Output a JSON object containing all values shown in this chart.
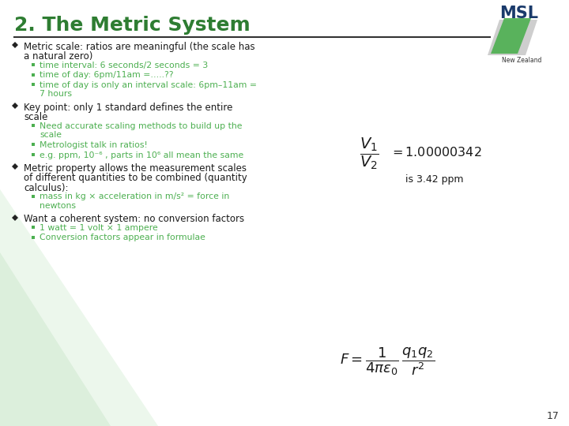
{
  "title": "2. The Metric System",
  "title_color": "#2E7D32",
  "title_fontsize": 18,
  "bg_color": "#FFFFFF",
  "slide_number": "17",
  "header_line_color": "#333333",
  "msl_text_color": "#1a3a6b",
  "items": [
    {
      "level": 0,
      "lines": [
        "Metric scale: ratios are meaningful (the scale has",
        "a natural zero)"
      ],
      "color": "#1a1a1a"
    },
    {
      "level": 1,
      "lines": [
        "time interval: 6 seconds/2 seconds = 3"
      ],
      "color": "#4CAF50"
    },
    {
      "level": 1,
      "lines": [
        "time of day: 6pm/11am =…..??"
      ],
      "color": "#4CAF50"
    },
    {
      "level": 1,
      "lines": [
        "time of day is only an interval scale: 6pm–11am =",
        "7 hours"
      ],
      "color": "#4CAF50"
    },
    {
      "level": 0,
      "lines": [
        "Key point: only 1 standard defines the entire",
        "scale"
      ],
      "color": "#1a1a1a"
    },
    {
      "level": 1,
      "lines": [
        "Need accurate scaling methods to build up the",
        "scale"
      ],
      "color": "#4CAF50"
    },
    {
      "level": 1,
      "lines": [
        "Metrologist talk in ratios!"
      ],
      "color": "#4CAF50"
    },
    {
      "level": 1,
      "lines": [
        "e.g. ppm, 10⁻⁶ , parts in 10⁶ all mean the same"
      ],
      "color": "#4CAF50"
    },
    {
      "level": 0,
      "lines": [
        "Metric property allows the measurement scales",
        "of different quantities to be combined (quantity",
        "calculus):"
      ],
      "color": "#1a1a1a"
    },
    {
      "level": 1,
      "lines": [
        "mass in kg × acceleration in m/s² = force in",
        "newtons"
      ],
      "color": "#4CAF50"
    },
    {
      "level": 0,
      "lines": [
        "Want a coherent system: no conversion factors"
      ],
      "color": "#1a1a1a"
    },
    {
      "level": 1,
      "lines": [
        "1 watt = 1 volt × 1 ampere"
      ],
      "color": "#4CAF50"
    },
    {
      "level": 1,
      "lines": [
        "Conversion factors appear in formulae"
      ],
      "color": "#4CAF50"
    }
  ]
}
